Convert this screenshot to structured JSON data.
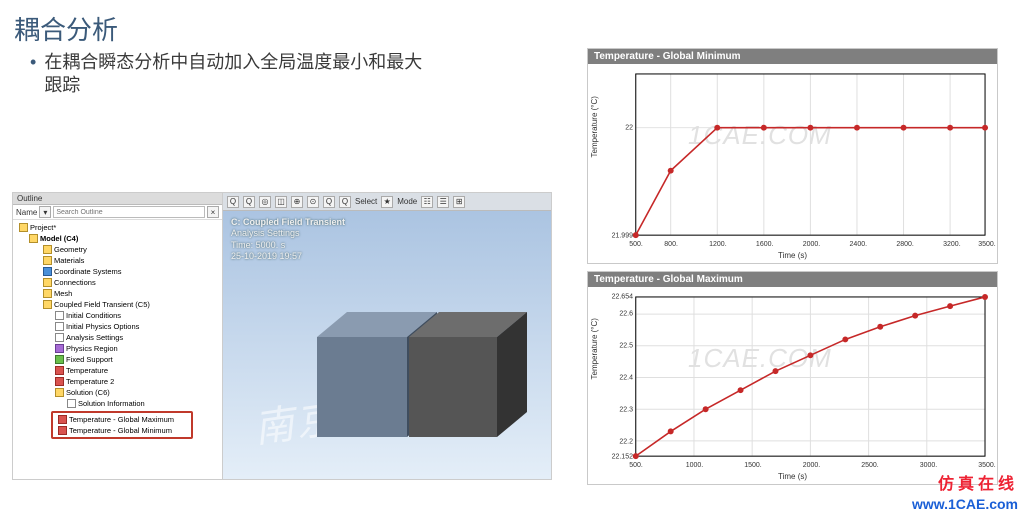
{
  "slide": {
    "title": "耦合分析",
    "bullet": "在耦合瞬态分析中自动加入全局温度最小和最大跟踪"
  },
  "outline": {
    "header": "Outline",
    "name_label": "Name",
    "search_placeholder": "Search Outline",
    "tree": {
      "project": "Project*",
      "model": "Model (C4)",
      "items": [
        {
          "icon": "folder",
          "label": "Geometry",
          "indent": 2
        },
        {
          "icon": "folder",
          "label": "Materials",
          "indent": 2
        },
        {
          "icon": "blue",
          "label": "Coordinate Systems",
          "indent": 2
        },
        {
          "icon": "folder",
          "label": "Connections",
          "indent": 2
        },
        {
          "icon": "folder",
          "label": "Mesh",
          "indent": 2
        },
        {
          "icon": "folder",
          "label": "Coupled Field Transient (C5)",
          "indent": 2
        },
        {
          "icon": "doc",
          "label": "Initial Conditions",
          "indent": 3
        },
        {
          "icon": "doc",
          "label": "Initial Physics Options",
          "indent": 3
        },
        {
          "icon": "doc",
          "label": "Analysis Settings",
          "indent": 3
        },
        {
          "icon": "purple",
          "label": "Physics Region",
          "indent": 3
        },
        {
          "icon": "green",
          "label": "Fixed Support",
          "indent": 3
        },
        {
          "icon": "red",
          "label": "Temperature",
          "indent": 3
        },
        {
          "icon": "red",
          "label": "Temperature 2",
          "indent": 3
        },
        {
          "icon": "folder",
          "label": "Solution (C6)",
          "indent": 3
        },
        {
          "icon": "doc",
          "label": "Solution Information",
          "indent": 4
        }
      ],
      "highlighted": [
        {
          "icon": "red",
          "label": "Temperature - Global Maximum"
        },
        {
          "icon": "red",
          "label": "Temperature - Global Minimum"
        }
      ]
    }
  },
  "viewport": {
    "title": "C: Coupled Field Transient",
    "subtitle": "Analysis Settings",
    "time": "Time: 5000. s",
    "date": "25-10-2019 19:57",
    "select_label": "Select",
    "mode_label": "Mode",
    "watermark": "南京安世"
  },
  "chart_top": {
    "title": "Temperature - Global Minimum",
    "ylabel": "Temperature (°C)",
    "xlabel": "Time (s)",
    "watermark": "1CAE.COM",
    "line_color": "#c62828",
    "marker_color": "#c62828",
    "grid_color": "#dfdfdf",
    "axis_color": "#000000",
    "xlim": [
      500,
      3500
    ],
    "ylim": [
      21.999,
      22.0005
    ],
    "xticks": [
      500,
      800,
      1200,
      1600,
      2000,
      2400,
      2800,
      3200,
      3500
    ],
    "yticks": [
      21.999,
      22
    ],
    "data": [
      {
        "x": 500,
        "y": 21.999
      },
      {
        "x": 800,
        "y": 21.9996
      },
      {
        "x": 1200,
        "y": 22.0
      },
      {
        "x": 1600,
        "y": 22.0
      },
      {
        "x": 2000,
        "y": 22.0
      },
      {
        "x": 2400,
        "y": 22.0
      },
      {
        "x": 2800,
        "y": 22.0
      },
      {
        "x": 3200,
        "y": 22.0
      },
      {
        "x": 3500,
        "y": 22.0
      }
    ]
  },
  "chart_bot": {
    "title": "Temperature - Global Maximum",
    "ylabel": "Temperature (°C)",
    "xlabel": "Time (s)",
    "watermark": "1CAE.COM",
    "line_color": "#c62828",
    "marker_color": "#c62828",
    "grid_color": "#dfdfdf",
    "axis_color": "#000000",
    "xlim": [
      500,
      3500
    ],
    "ylim": [
      22.152,
      22.654
    ],
    "xticks": [
      500,
      1000,
      1500,
      2000,
      2500,
      3000,
      3500
    ],
    "yticks": [
      22.152,
      22.2,
      22.3,
      22.4,
      22.5,
      22.6,
      22.654
    ],
    "data": [
      {
        "x": 500,
        "y": 22.152
      },
      {
        "x": 800,
        "y": 22.23
      },
      {
        "x": 1100,
        "y": 22.3
      },
      {
        "x": 1400,
        "y": 22.36
      },
      {
        "x": 1700,
        "y": 22.42
      },
      {
        "x": 2000,
        "y": 22.47
      },
      {
        "x": 2300,
        "y": 22.52
      },
      {
        "x": 2600,
        "y": 22.56
      },
      {
        "x": 2900,
        "y": 22.595
      },
      {
        "x": 3200,
        "y": 22.625
      },
      {
        "x": 3500,
        "y": 22.654
      }
    ]
  },
  "footer": {
    "cn": "仿真在线",
    "url": "www.1CAE.com"
  },
  "colors": {
    "title_color": "#3b5a7a",
    "chart_header_bg": "#7f7f7f"
  }
}
